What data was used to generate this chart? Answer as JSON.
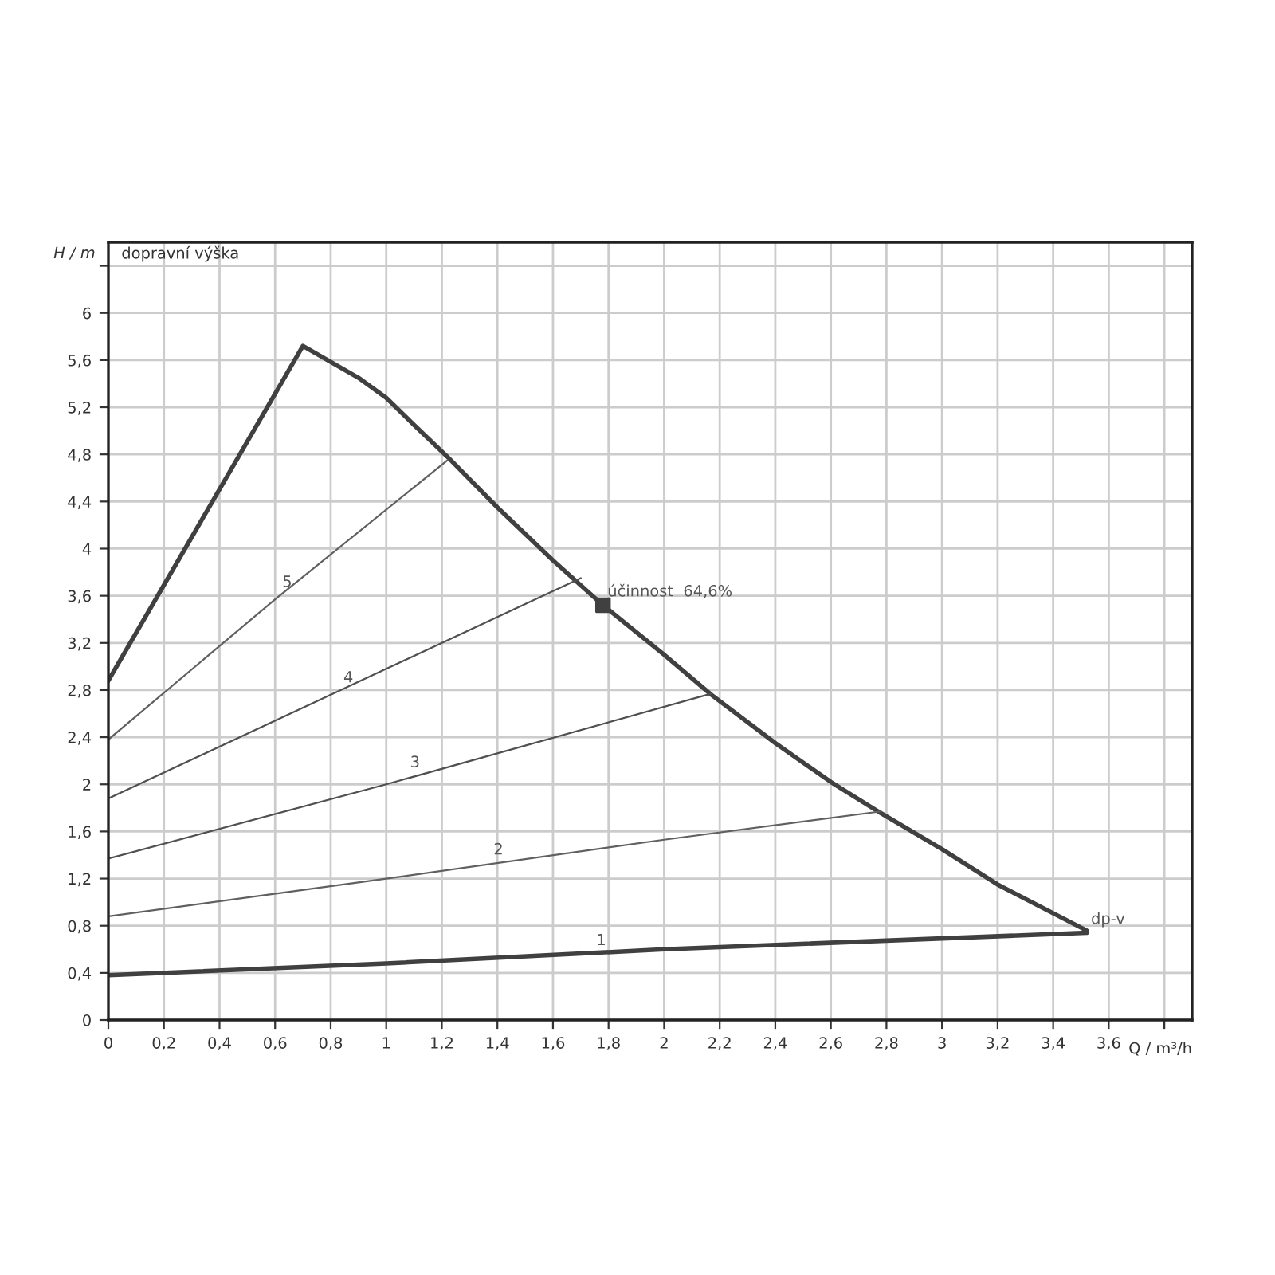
{
  "chart_data": {
    "type": "line",
    "xlabel": "Q / m³/h",
    "ylabel": "H / m",
    "xlim": [
      0,
      3.9
    ],
    "ylim": [
      0,
      6.6
    ],
    "xticks": [
      0,
      {
        "value": 0.2,
        "label": "0,2"
      },
      {
        "value": 0.4,
        "label": "0,4"
      },
      {
        "value": 0.6,
        "label": "0,6"
      },
      {
        "value": 0.8,
        "label": "0,8"
      },
      1,
      {
        "value": 1.2,
        "label": "1,2"
      },
      {
        "value": 1.4,
        "label": "1,4"
      },
      {
        "value": 1.6,
        "label": "1,6"
      },
      {
        "value": 1.8,
        "label": "1,8"
      },
      2,
      {
        "value": 2.2,
        "label": "2,2"
      },
      {
        "value": 2.4,
        "label": "2,4"
      },
      {
        "value": 2.6,
        "label": "2,6"
      },
      {
        "value": 2.8,
        "label": "2,8"
      },
      3,
      {
        "value": 3.2,
        "label": "3,2"
      },
      {
        "value": 3.4,
        "label": "3,4"
      },
      {
        "value": 3.6,
        "label": "3,6"
      },
      {
        "value": 3.8,
        "label": null
      }
    ],
    "yticks": [
      0,
      {
        "value": 0.4,
        "label": "0,4"
      },
      {
        "value": 0.8,
        "label": "0,8"
      },
      {
        "value": 1.2,
        "label": "1,2"
      },
      {
        "value": 1.6,
        "label": "1,6"
      },
      2,
      {
        "value": 2.4,
        "label": "2,4"
      },
      {
        "value": 2.8,
        "label": "2,8"
      },
      {
        "value": 3.2,
        "label": "3,2"
      },
      {
        "value": 3.6,
        "label": "3,6"
      },
      4,
      {
        "value": 4.4,
        "label": "4,4"
      },
      {
        "value": 4.8,
        "label": "4,8"
      },
      {
        "value": 5.2,
        "label": "5,2"
      },
      {
        "value": 5.6,
        "label": "5,6"
      },
      6,
      {
        "value": 6.4,
        "label": null
      }
    ],
    "grid": true,
    "legend": false,
    "line_style": "solid",
    "series": [
      {
        "color": "#404040",
        "x": [
          0,
          0.7,
          0.9,
          1.0,
          1.1,
          1.22,
          1.4,
          1.6,
          1.78,
          2.0,
          2.17,
          2.4,
          2.6,
          2.77,
          3.0,
          3.2,
          3.52
        ],
        "values": [
          2.88,
          5.72,
          5.45,
          5.28,
          5.05,
          4.78,
          4.35,
          3.9,
          3.52,
          3.1,
          2.76,
          2.35,
          2.02,
          1.77,
          1.45,
          1.15,
          0.76
        ]
      },
      {
        "color": "#404040",
        "x": [
          0,
          1,
          2,
          3.52
        ],
        "values": [
          0.38,
          0.48,
          0.6,
          0.74
        ]
      },
      {
        "color": "#606060",
        "x": [
          0,
          1,
          2,
          2.78
        ],
        "values": [
          0.88,
          1.2,
          1.53,
          1.77
        ]
      },
      {
        "color": "#505050",
        "x": [
          0,
          1,
          2.17
        ],
        "values": [
          1.37,
          2.0,
          2.77
        ]
      },
      {
        "color": "#505050",
        "x": [
          0,
          1,
          1.7
        ],
        "values": [
          1.88,
          2.98,
          3.75
        ]
      },
      {
        "color": "#606060",
        "x": [
          0,
          0.6,
          1.22
        ],
        "values": [
          2.38,
          3.57,
          4.75
        ]
      },
      {
        "type": "scatter",
        "marker": "square",
        "color": "#404040",
        "x": [
          1.78
        ],
        "values": [
          3.52
        ]
      }
    ],
    "annotations": [
      "dopravní výška",
      {
        "text": "účinnost  64,6%",
        "x": 1.78,
        "y": 3.52
      },
      {
        "text": "dp-v",
        "x": 3.52,
        "y": 0.74
      },
      {
        "text": "1",
        "x": 1.74,
        "y": 0.56
      },
      {
        "text": "2",
        "x": 1.37,
        "y": 1.33
      },
      {
        "text": "3",
        "x": 1.07,
        "y": 2.07
      },
      {
        "text": "4",
        "x": 0.83,
        "y": 2.79
      },
      {
        "text": "5",
        "x": 0.61,
        "y": 3.6
      }
    ]
  }
}
